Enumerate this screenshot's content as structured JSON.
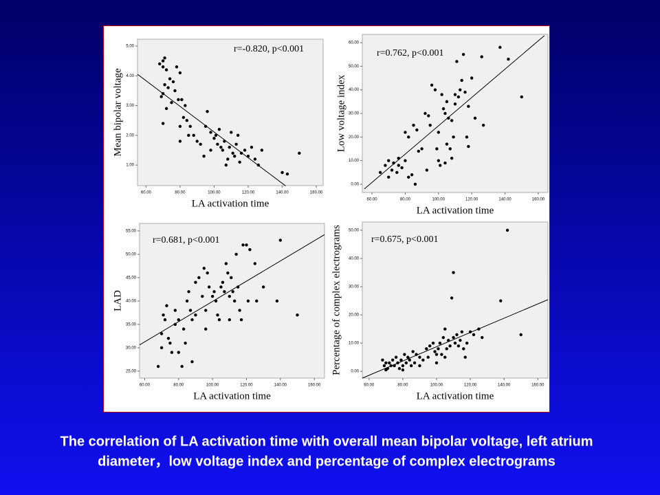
{
  "chart_data": [
    {
      "type": "scatter",
      "annotation": "r=-0.820, p<0.001",
      "x_label": "LA activation time",
      "y_label": "Mean bipolar voltage",
      "color": "#000000",
      "xlim": [
        55,
        164
      ],
      "ylim": [
        0.31,
        5.23
      ],
      "xticks": [
        {
          "value": 60,
          "label": "60.00"
        },
        {
          "value": 80,
          "label": "80.00"
        },
        {
          "value": 100,
          "label": "100.00"
        },
        {
          "value": 120,
          "label": "120.00"
        },
        {
          "value": 140,
          "label": "140.00"
        },
        {
          "value": 160,
          "label": "160.00"
        }
      ],
      "yticks": [
        {
          "value": 1,
          "label": "1.00"
        },
        {
          "value": 2,
          "label": "2.00"
        },
        {
          "value": 3,
          "label": "3.00"
        },
        {
          "value": 4,
          "label": "4.00"
        },
        {
          "value": 5,
          "label": "5.00"
        }
      ],
      "x": [
        68,
        70,
        71,
        70,
        72,
        70,
        69,
        71,
        73,
        74,
        76,
        78,
        80,
        77,
        79,
        81,
        83,
        75,
        72,
        70,
        80,
        82,
        84,
        86,
        85,
        80,
        88,
        90,
        92,
        94,
        95,
        96,
        98,
        100,
        101,
        102,
        103,
        104,
        105,
        106,
        108,
        109,
        110,
        111,
        112,
        113,
        114,
        115,
        116,
        118,
        120,
        122,
        124,
        126,
        128,
        140,
        143,
        150,
        98,
        107
      ],
      "values": [
        4.4,
        4.5,
        4.6,
        4.3,
        4.2,
        3.4,
        3.3,
        3.7,
        3.6,
        3.9,
        3.8,
        4.3,
        4.1,
        3.5,
        3.2,
        3.2,
        3.0,
        3.1,
        2.9,
        2.4,
        2.3,
        2.6,
        2.5,
        2.3,
        2.0,
        1.8,
        2.0,
        1.8,
        1.7,
        1.3,
        2.3,
        2.8,
        2.1,
        1.9,
        2.0,
        1.7,
        2.2,
        1.6,
        1.5,
        1.8,
        1.2,
        1.6,
        2.1,
        1.4,
        1.3,
        1.7,
        2.0,
        1.1,
        1.4,
        1.5,
        1.3,
        1.6,
        1.2,
        1.0,
        1.5,
        0.75,
        0.7,
        1.4,
        1.5,
        1.0
      ],
      "fit_line": {
        "x": [
          55,
          142
        ],
        "values": [
          4.05,
          0.3
        ]
      }
    },
    {
      "type": "scatter",
      "annotation": "r=0.762, p<0.001",
      "x_label": "LA activation time",
      "y_label": "Low voltage index",
      "color": "#000000",
      "xlim": [
        54.2,
        165.8
      ],
      "ylim": [
        -3.5,
        63.5
      ],
      "xticks": [
        {
          "value": 60,
          "label": "60.00"
        },
        {
          "value": 80,
          "label": "80.00"
        },
        {
          "value": 100,
          "label": "100.00"
        },
        {
          "value": 120,
          "label": "120.00"
        },
        {
          "value": 140,
          "label": "140.00"
        },
        {
          "value": 160,
          "label": "160.00"
        }
      ],
      "yticks": [
        {
          "value": 0,
          "label": "0.00"
        },
        {
          "value": 10,
          "label": "10.00"
        },
        {
          "value": 20,
          "label": "20.00"
        },
        {
          "value": 30,
          "label": "30.00"
        },
        {
          "value": 40,
          "label": "40.00"
        },
        {
          "value": 50,
          "label": "50.00"
        },
        {
          "value": 60,
          "label": "60.00"
        }
      ],
      "x": [
        68,
        70,
        72,
        73,
        75,
        76,
        78,
        80,
        82,
        84,
        86,
        80,
        82,
        85,
        87,
        88,
        90,
        92,
        94,
        95,
        96,
        98,
        99,
        100,
        100,
        101,
        102,
        103,
        104,
        105,
        105,
        106,
        107,
        108,
        108,
        110,
        110,
        111,
        112,
        113,
        114,
        115,
        116,
        117,
        118,
        118,
        120,
        122,
        126,
        127,
        137,
        142,
        150,
        65,
        70,
        76,
        93,
        104,
        109
      ],
      "values": [
        8,
        10,
        6,
        9,
        5,
        8,
        7,
        10,
        3,
        4,
        0,
        22,
        20,
        25,
        23,
        14,
        15,
        30,
        29,
        25,
        42,
        40,
        15,
        22,
        10,
        8,
        38,
        32,
        30,
        35,
        17,
        28,
        15,
        27,
        11,
        34,
        38,
        52,
        37,
        40,
        44,
        55,
        39,
        20,
        33,
        16,
        45,
        28,
        54,
        25,
        58,
        53,
        37,
        5,
        3,
        11,
        6,
        9,
        20
      ],
      "fit_line": {
        "x": [
          55.4,
          163.7
        ],
        "values": [
          -2,
          63
        ]
      }
    },
    {
      "type": "scatter",
      "annotation": "r=0.681, p<0.001",
      "x_label": "LA activation time",
      "y_label": "LAD",
      "color": "#000000",
      "xlim": [
        57,
        166
      ],
      "ylim": [
        23.5,
        56.6
      ],
      "xticks": [
        {
          "value": 60,
          "label": "60.00"
        },
        {
          "value": 80,
          "label": "80.00"
        },
        {
          "value": 100,
          "label": "100.00"
        },
        {
          "value": 120,
          "label": "120.00"
        },
        {
          "value": 140,
          "label": "140.00"
        },
        {
          "value": 160,
          "label": "160.00"
        }
      ],
      "yticks": [
        {
          "value": 25,
          "label": "25.00"
        },
        {
          "value": 30,
          "label": "30.00"
        },
        {
          "value": 35,
          "label": "35.00"
        },
        {
          "value": 40,
          "label": "40.00"
        },
        {
          "value": 45,
          "label": "45.00"
        },
        {
          "value": 50,
          "label": "50.00"
        },
        {
          "value": 55,
          "label": "55.00"
        }
      ],
      "x": [
        68,
        70,
        70,
        71,
        72,
        73,
        74,
        75,
        76,
        78,
        78,
        80,
        80,
        82,
        83,
        84,
        85,
        86,
        87,
        88,
        90,
        90,
        92,
        94,
        95,
        96,
        97,
        98,
        100,
        101,
        102,
        103,
        104,
        105,
        106,
        107,
        108,
        109,
        110,
        111,
        112,
        113,
        114,
        115,
        116,
        118,
        120,
        121,
        122,
        125,
        126,
        130,
        138,
        140,
        150,
        88,
        96,
        110,
        117
      ],
      "values": [
        26,
        30,
        33,
        37,
        36,
        39,
        32,
        31,
        29,
        35,
        38,
        36,
        29,
        26,
        34,
        31,
        40,
        42,
        38,
        36,
        44,
        37,
        45,
        41,
        47,
        38,
        46,
        43,
        41,
        42,
        40,
        37,
        36,
        43,
        44,
        42,
        48,
        46,
        41,
        45,
        42,
        40,
        50,
        43,
        38,
        52,
        52,
        40,
        51,
        48,
        40,
        43,
        40,
        53,
        37,
        27,
        34,
        36,
        36
      ],
      "fit_line": {
        "x": [
          57,
          166
        ],
        "values": [
          30.6,
          54.2
        ]
      }
    },
    {
      "type": "scatter",
      "annotation": "r=0.675, p<0.001",
      "x_label": "LA activation time",
      "y_label": "Percentage of complex electrograms",
      "color": "#000000",
      "xlim": [
        56,
        166
      ],
      "ylim": [
        -2.4,
        52.9
      ],
      "xticks": [
        {
          "value": 60,
          "label": "60.00"
        },
        {
          "value": 80,
          "label": "80.00"
        },
        {
          "value": 100,
          "label": "100.00"
        },
        {
          "value": 120,
          "label": "120.00"
        },
        {
          "value": 140,
          "label": "140.00"
        },
        {
          "value": 160,
          "label": "160.00"
        }
      ],
      "yticks": [
        {
          "value": 0,
          "label": "0.00"
        },
        {
          "value": 10,
          "label": "10.00"
        },
        {
          "value": 20,
          "label": "20.00"
        },
        {
          "value": 30,
          "label": "30.00"
        },
        {
          "value": 40,
          "label": "40.00"
        },
        {
          "value": 50,
          "label": "50.00"
        }
      ],
      "x": [
        68,
        69,
        70,
        71,
        72,
        73,
        74,
        75,
        76,
        77,
        78,
        79,
        80,
        81,
        82,
        83,
        84,
        85,
        86,
        87,
        88,
        90,
        92,
        94,
        95,
        96,
        98,
        99,
        100,
        101,
        102,
        103,
        104,
        105,
        106,
        107,
        108,
        109,
        110,
        110,
        111,
        112,
        113,
        114,
        115,
        116,
        117,
        118,
        120,
        122,
        125,
        127,
        138,
        142,
        150,
        70,
        80,
        90,
        100,
        105
      ],
      "values": [
        4,
        2,
        3,
        1,
        3,
        2,
        4,
        2,
        5,
        3,
        1,
        4,
        2,
        6,
        3,
        5,
        4,
        2,
        7,
        3,
        6,
        5,
        4,
        8,
        5,
        9,
        10,
        7,
        6,
        8,
        10,
        6,
        12,
        15,
        8,
        11,
        9,
        26,
        35,
        12,
        10,
        13,
        9,
        11,
        14,
        8,
        5,
        10,
        14,
        13,
        15,
        12,
        25,
        50,
        13,
        0.5,
        0.5,
        2,
        3,
        5
      ],
      "fit_line": {
        "x": [
          56,
          166
        ],
        "values": [
          -2.4,
          25.4
        ]
      }
    }
  ],
  "caption": [
    "The correlation of LA activation time with overall mean bipolar voltage, left atrium",
    "diameter，low voltage index and percentage of complex electrograms"
  ]
}
